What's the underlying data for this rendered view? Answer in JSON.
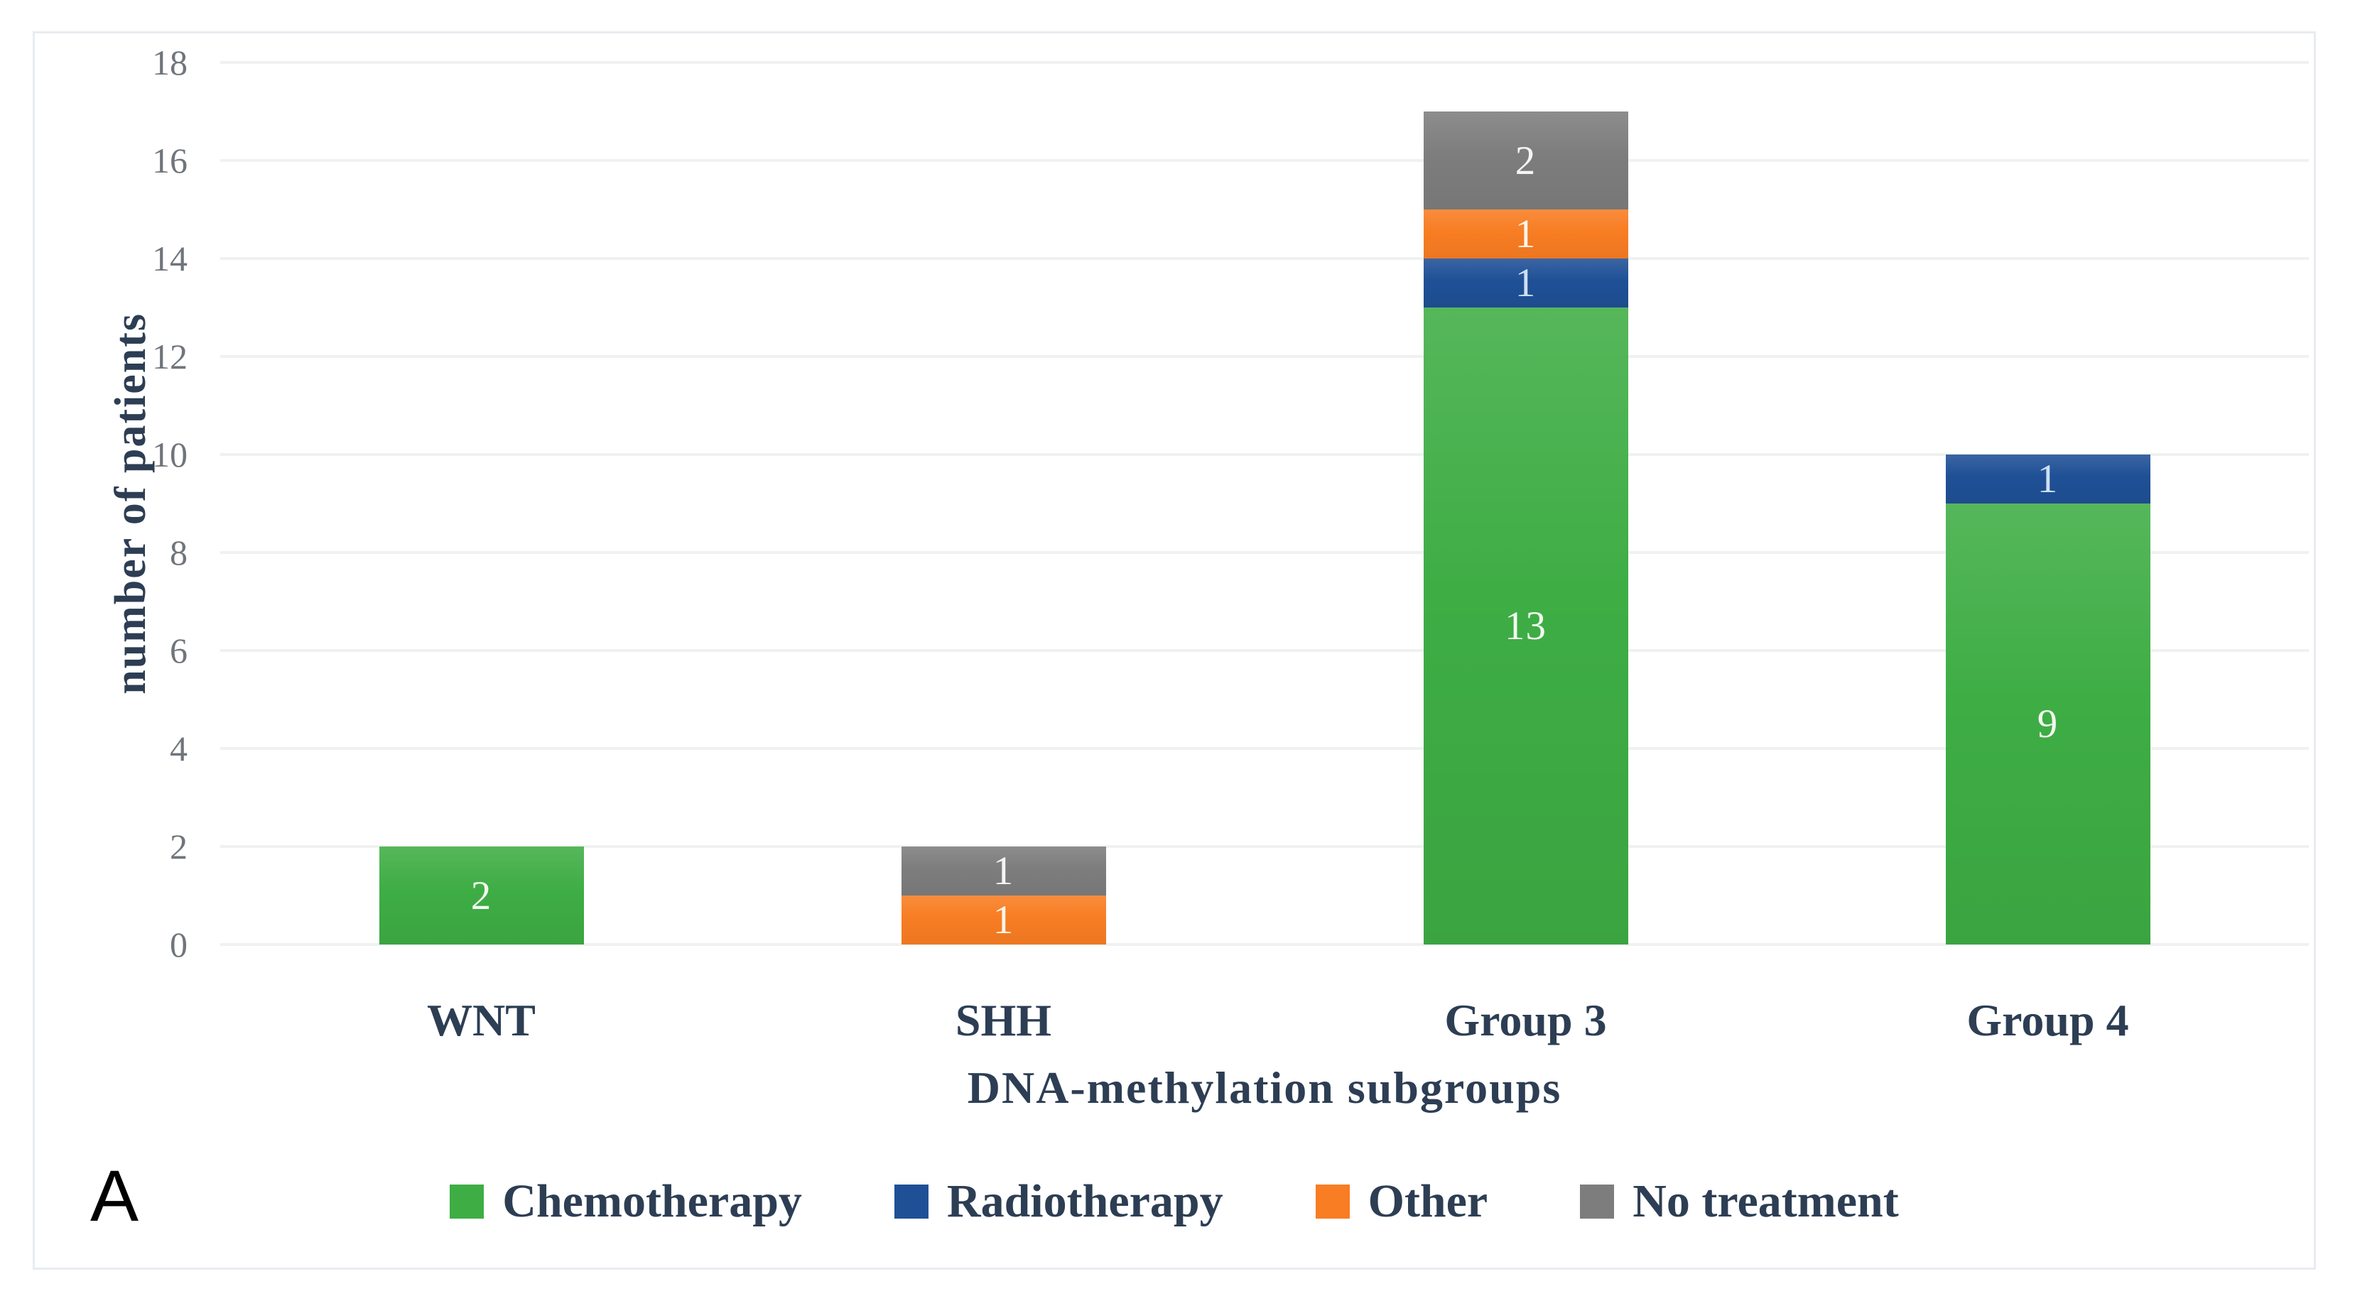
{
  "chart_data": {
    "type": "bar",
    "stacked": true,
    "title": "",
    "xlabel": "DNA-methylation subgroups",
    "ylabel": "number of patients",
    "categories": [
      "WNT",
      "SHH",
      "Group 3",
      "Group 4"
    ],
    "series": [
      {
        "name": "Chemotherapy",
        "color": "#3EAD44",
        "label_color": "#f2f8ef",
        "values": [
          2,
          0,
          13,
          9
        ]
      },
      {
        "name": "Radiotherapy",
        "color": "#1F5096",
        "label_color": "#cfe0f4",
        "values": [
          0,
          0,
          1,
          1
        ]
      },
      {
        "name": "Other",
        "color": "#F87D23",
        "label_color": "#fdf6e9",
        "values": [
          0,
          1,
          1,
          0
        ]
      },
      {
        "name": "No treatment",
        "color": "#7D7D7D",
        "label_color": "#f5f5f5",
        "values": [
          0,
          1,
          2,
          0
        ]
      }
    ],
    "y_ticks": [
      0,
      2,
      4,
      6,
      8,
      10,
      12,
      14,
      16,
      18
    ],
    "ylim": [
      0,
      18
    ],
    "grid": "horizontal",
    "legend_position": "bottom",
    "panel_label": "A",
    "colors": {
      "grid": "#f0f2f2",
      "axis_text": "#2d3e54",
      "tick_text": "#70757c",
      "panel_border": "#e8ecf1",
      "background": "#ffffff"
    }
  }
}
